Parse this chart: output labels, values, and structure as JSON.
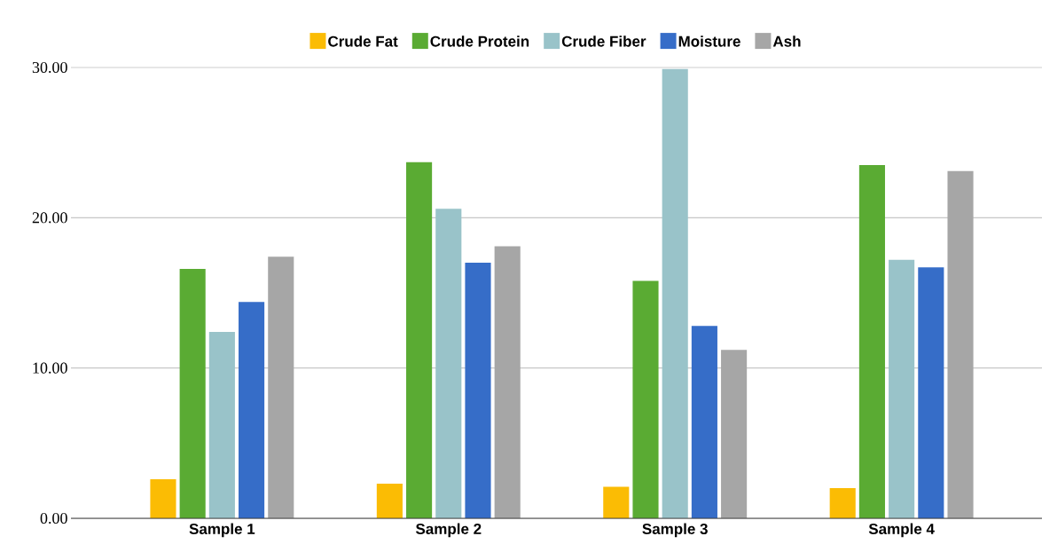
{
  "chart_data": {
    "type": "bar",
    "categories": [
      "Sample 1",
      "Sample 2",
      "Sample 3",
      "Sample 4"
    ],
    "series": [
      {
        "name": "Crude Fat",
        "color": "#fbbc04",
        "values": [
          2.6,
          2.3,
          2.1,
          2.0
        ]
      },
      {
        "name": "Crude Protein",
        "color": "#5aab33",
        "values": [
          16.6,
          23.7,
          15.8,
          23.5
        ]
      },
      {
        "name": "Crude Fiber",
        "color": "#99c3c9",
        "values": [
          12.4,
          20.6,
          29.9,
          17.2
        ]
      },
      {
        "name": "Moisture",
        "color": "#366dc8",
        "values": [
          14.4,
          17.0,
          12.8,
          16.7
        ]
      },
      {
        "name": "Ash",
        "color": "#a6a6a6",
        "values": [
          17.4,
          18.1,
          11.2,
          23.1
        ]
      }
    ],
    "ylim": [
      0,
      30
    ],
    "yticks": [
      {
        "value": 0,
        "label": "0.00"
      },
      {
        "value": 10,
        "label": "10.00"
      },
      {
        "value": 20,
        "label": "20.00"
      },
      {
        "value": 30,
        "label": "30.00"
      }
    ],
    "grid": "y",
    "legend": "top"
  }
}
